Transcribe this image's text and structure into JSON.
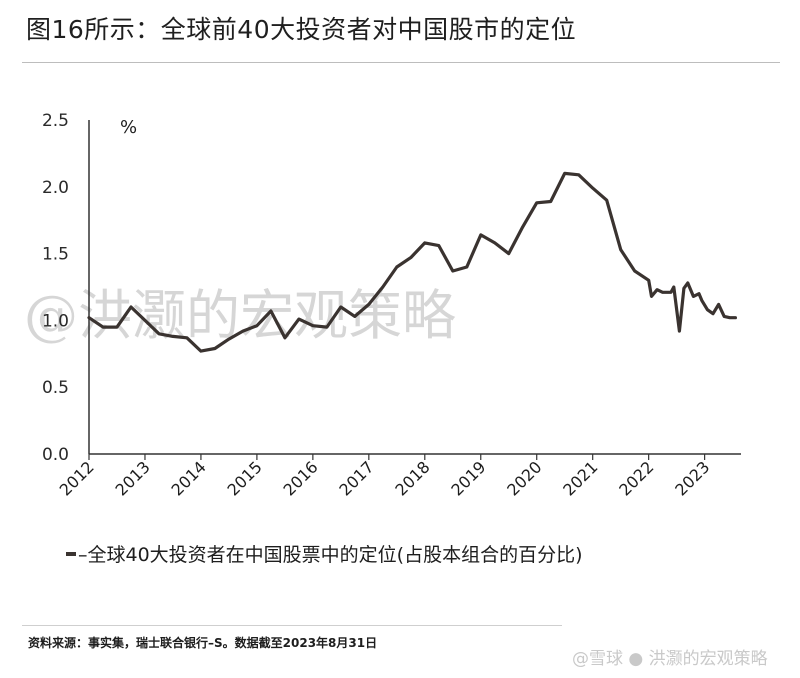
{
  "title": "图16所示：全球前40大投资者对中国股市的定位",
  "watermark": "@洪灏的宏观策略",
  "legend_label": "–全球40大投资者在中国股票中的定位(占股本组合的百分比)",
  "source": "资料来源：事实集，瑞士联合银行–S。数据截至2023年8月31日",
  "corner_watermark": "@雪球 ● 洪灏的宏观策略",
  "colors": {
    "line": "#3a3330",
    "axis": "#333333",
    "watermark": "#d6d6d6"
  },
  "chart_data": {
    "type": "line",
    "title": "图16所示：全球前40大投资者对中国股市的定位",
    "y_unit_label": "%",
    "ylim": [
      0,
      2.5
    ],
    "yticks": [
      "0.0",
      "0.5",
      "1.0",
      "1.5",
      "2.0",
      "2.5"
    ],
    "xlim": [
      2012.0,
      2023.65
    ],
    "xticks": [
      "2012",
      "2013",
      "2014",
      "2015",
      "2016",
      "2017",
      "2018",
      "2019",
      "2020",
      "2021",
      "2022",
      "2023"
    ],
    "grid": false,
    "legend_position": "bottom",
    "series": [
      {
        "name": "–全球40大投资者在中国股票中的定位(占股本组合的百分比)",
        "x": [
          2012.0,
          2012.25,
          2012.5,
          2012.75,
          2013.0,
          2013.25,
          2013.5,
          2013.75,
          2014.0,
          2014.25,
          2014.5,
          2014.75,
          2015.0,
          2015.25,
          2015.5,
          2015.75,
          2016.0,
          2016.25,
          2016.5,
          2016.75,
          2017.0,
          2017.25,
          2017.5,
          2017.75,
          2018.0,
          2018.25,
          2018.5,
          2018.75,
          2019.0,
          2019.25,
          2019.5,
          2019.75,
          2020.0,
          2020.25,
          2020.5,
          2020.75,
          2021.0,
          2021.25,
          2021.5,
          2021.75,
          2022.0,
          2022.05,
          2022.15,
          2022.25,
          2022.4,
          2022.45,
          2022.55,
          2022.63,
          2022.7,
          2022.8,
          2022.9,
          2022.95,
          2023.05,
          2023.15,
          2023.25,
          2023.35,
          2023.45,
          2023.55
        ],
        "values": [
          1.02,
          0.95,
          0.95,
          1.1,
          1.0,
          0.9,
          0.88,
          0.87,
          0.77,
          0.79,
          0.86,
          0.92,
          0.96,
          1.07,
          0.87,
          1.01,
          0.96,
          0.95,
          1.1,
          1.03,
          1.12,
          1.25,
          1.4,
          1.47,
          1.58,
          1.56,
          1.37,
          1.4,
          1.64,
          1.58,
          1.5,
          1.7,
          1.88,
          1.89,
          2.1,
          2.09,
          1.99,
          1.9,
          1.53,
          1.37,
          1.3,
          1.18,
          1.23,
          1.21,
          1.21,
          1.25,
          0.92,
          1.24,
          1.28,
          1.18,
          1.2,
          1.15,
          1.08,
          1.05,
          1.12,
          1.03,
          1.02,
          1.02
        ]
      }
    ]
  }
}
